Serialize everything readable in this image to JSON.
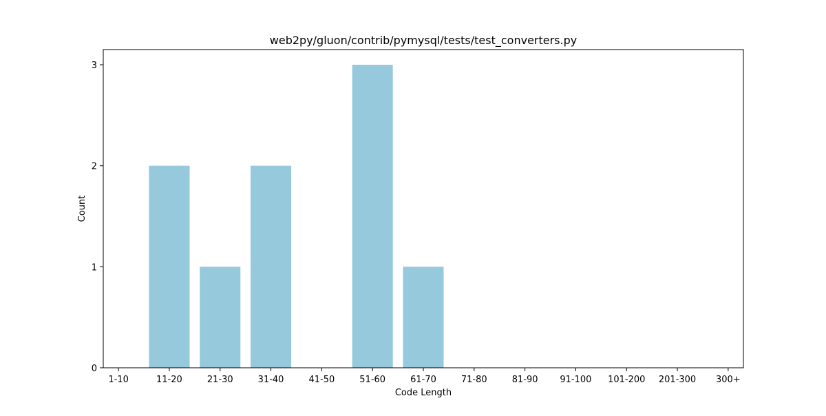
{
  "chart_data": {
    "type": "bar",
    "title": "web2py/gluon/contrib/pymysql/tests/test_converters.py",
    "xlabel": "Code Length",
    "ylabel": "Count",
    "categories": [
      "1-10",
      "11-20",
      "21-30",
      "31-40",
      "41-50",
      "51-60",
      "61-70",
      "71-80",
      "81-90",
      "91-100",
      "101-200",
      "201-300",
      "300+"
    ],
    "values": [
      0,
      2,
      1,
      2,
      0,
      3,
      1,
      0,
      0,
      0,
      0,
      0,
      0
    ],
    "ylim": [
      0,
      3.15
    ],
    "yticks": [
      0,
      1,
      2,
      3
    ],
    "bar_color": "#96c9dc",
    "grid": false,
    "legend": "none"
  }
}
